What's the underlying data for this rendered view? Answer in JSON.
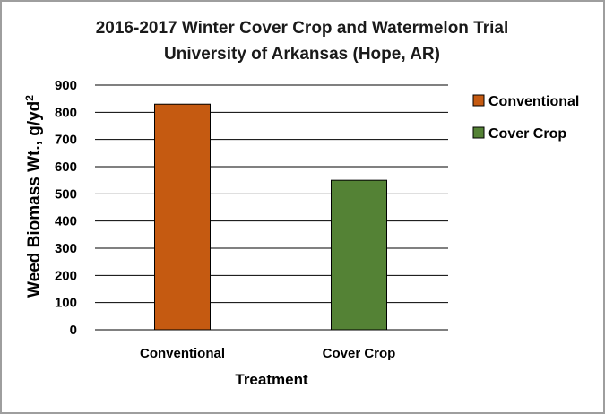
{
  "chart_data": {
    "type": "bar",
    "title": "2016-2017 Winter Cover Crop and Watermelon Trial",
    "subtitle": "University of Arkansas (Hope, AR)",
    "xlabel": "Treatment",
    "ylabel": "Weed Biomass Wt., g/yd",
    "ylabel_superscript": "2",
    "categories": [
      "Conventional",
      "Cover Crop"
    ],
    "values": [
      830,
      550
    ],
    "colors": [
      "#C55A11",
      "#548235"
    ],
    "ylim": [
      0,
      900
    ],
    "yticks": [
      "0",
      "100",
      "200",
      "300",
      "400",
      "500",
      "600",
      "700",
      "800",
      "900"
    ],
    "grid": true,
    "legend_position": "right",
    "legend": [
      "Conventional",
      "Cover Crop"
    ]
  }
}
